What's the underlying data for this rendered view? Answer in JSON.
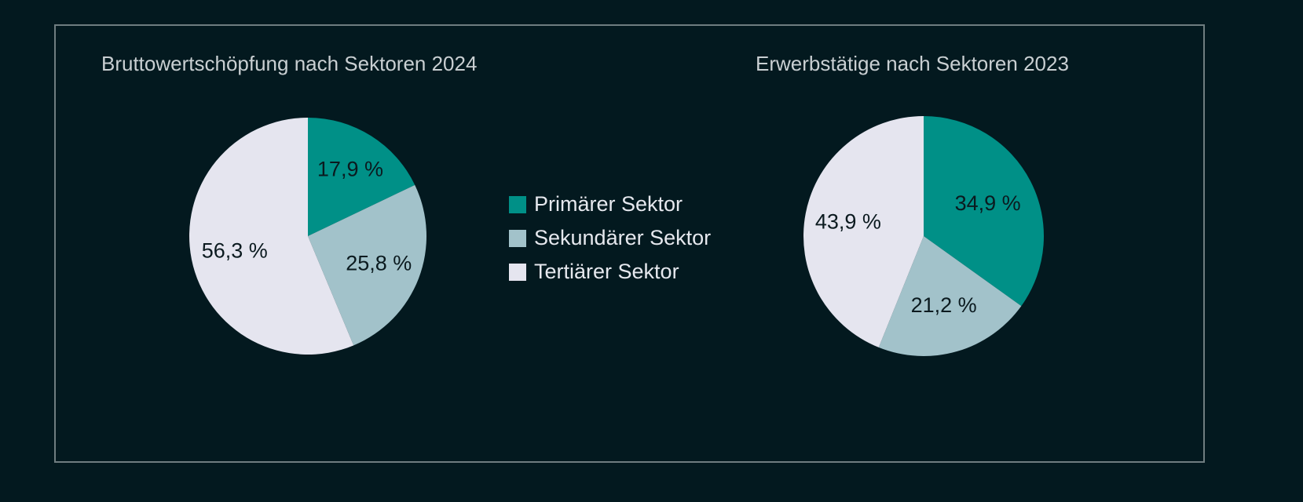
{
  "legend": [
    {
      "label": "Primärer Sektor",
      "color": "#009087"
    },
    {
      "label": "Sekundärer Sektor",
      "color": "#a2c2ca"
    },
    {
      "label": "Tertiärer Sektor",
      "color": "#e5e5ef"
    }
  ],
  "chart_data": [
    {
      "type": "pie",
      "title": "Bruttowertschöpfung nach Sektoren 2024",
      "categories": [
        "Primärer Sektor",
        "Sekundärer Sektor",
        "Tertiärer Sektor"
      ],
      "values": [
        17.9,
        25.8,
        56.3
      ],
      "labels": [
        "17,9 %",
        "25,8 %",
        "56,3 %"
      ],
      "colors": [
        "#009087",
        "#a2c2ca",
        "#e5e5ef"
      ],
      "legend": "center"
    },
    {
      "type": "pie",
      "title": "Erwerbstätige nach Sektoren 2023",
      "categories": [
        "Primärer Sektor",
        "Sekundärer Sektor",
        "Tertiärer Sektor"
      ],
      "values": [
        34.9,
        21.2,
        43.9
      ],
      "labels": [
        "34,9 %",
        "21,2 %",
        "43,9 %"
      ],
      "colors": [
        "#009087",
        "#a2c2ca",
        "#e5e5ef"
      ],
      "legend": "center"
    }
  ]
}
